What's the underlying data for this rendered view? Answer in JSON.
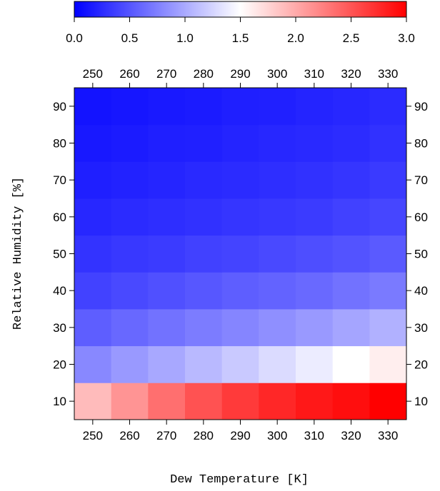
{
  "chart_data": {
    "type": "heatmap",
    "xlabel": "Dew Temperature [K]",
    "ylabel": "Relative Humidity [%]",
    "x": [
      250,
      260,
      270,
      280,
      290,
      300,
      310,
      320,
      330
    ],
    "y": [
      10,
      20,
      30,
      40,
      50,
      60,
      70,
      80,
      90
    ],
    "x_ticks": [
      "250",
      "260",
      "270",
      "280",
      "290",
      "300",
      "310",
      "320",
      "330"
    ],
    "y_ticks": [
      "10",
      "20",
      "30",
      "40",
      "50",
      "60",
      "70",
      "80",
      "90"
    ],
    "xlim": [
      245,
      335
    ],
    "ylim": [
      5,
      95
    ],
    "values": [
      [
        1.9,
        2.13,
        2.35,
        2.52,
        2.66,
        2.77,
        2.86,
        2.92,
        3.0
      ],
      [
        0.8,
        0.9,
        0.99,
        1.09,
        1.18,
        1.29,
        1.39,
        1.5,
        1.6
      ],
      [
        0.55,
        0.61,
        0.67,
        0.73,
        0.78,
        0.84,
        0.9,
        0.97,
        1.04
      ],
      [
        0.39,
        0.43,
        0.47,
        0.51,
        0.55,
        0.58,
        0.62,
        0.67,
        0.72
      ],
      [
        0.3,
        0.33,
        0.35,
        0.38,
        0.4,
        0.43,
        0.46,
        0.49,
        0.53
      ],
      [
        0.23,
        0.25,
        0.27,
        0.29,
        0.31,
        0.33,
        0.35,
        0.38,
        0.41
      ],
      [
        0.18,
        0.2,
        0.22,
        0.24,
        0.25,
        0.27,
        0.29,
        0.31,
        0.34
      ],
      [
        0.14,
        0.16,
        0.18,
        0.19,
        0.21,
        0.23,
        0.24,
        0.26,
        0.29
      ],
      [
        0.11,
        0.13,
        0.15,
        0.16,
        0.18,
        0.19,
        0.21,
        0.23,
        0.25
      ]
    ],
    "colorbar": {
      "min": 0,
      "max": 3,
      "ticks": [
        "0.0",
        "0.5",
        "1.0",
        "1.5",
        "2.0",
        "2.5",
        "3.0"
      ],
      "colors": [
        "#0000ff",
        "#ffffff",
        "#ff0000"
      ],
      "placement": "top"
    }
  }
}
